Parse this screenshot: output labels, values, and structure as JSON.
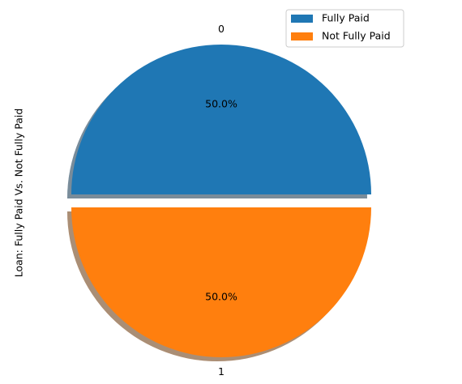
{
  "chart_data": {
    "type": "pie",
    "ylabel": "Loan: Fully Paid Vs. Not Fully Paid",
    "categories": [
      "0",
      "1"
    ],
    "legend": [
      "Fully Paid",
      "Not Fully Paid"
    ],
    "values": [
      50,
      50
    ],
    "value_labels": [
      "50.0%",
      "50.0%"
    ],
    "colors": [
      "#1f77b4",
      "#ff7f0e"
    ]
  }
}
